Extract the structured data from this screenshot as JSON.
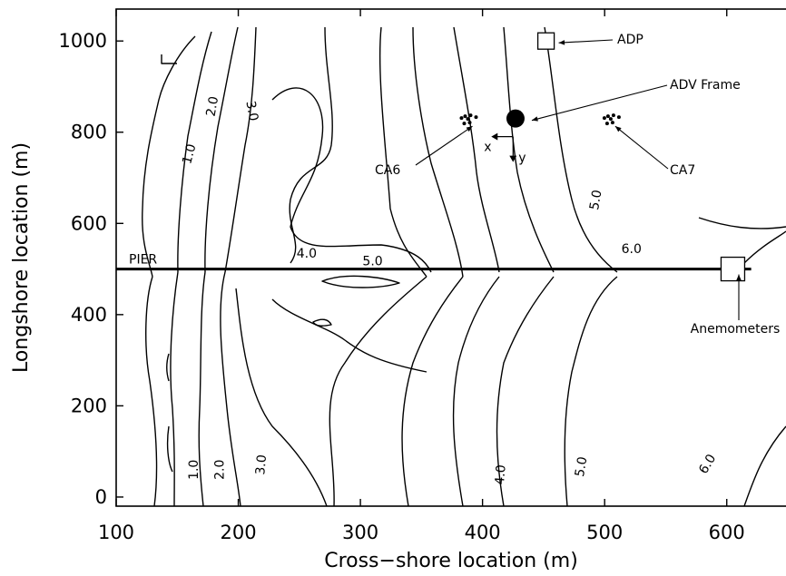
{
  "chart_data": {
    "type": "contour",
    "xlabel": "Cross−shore location (m)",
    "ylabel": "Longshore location (m)",
    "xlim": [
      100,
      650
    ],
    "ylim": [
      -20,
      1070
    ],
    "x_ticks": [
      "100",
      "200",
      "300",
      "400",
      "500",
      "600"
    ],
    "y_ticks": [
      "0",
      "200",
      "400",
      "600",
      "800",
      "1000"
    ],
    "contour_levels": [
      "1.0",
      "2.0",
      "3.0",
      "4.0",
      "5.0",
      "6.0"
    ],
    "contour_labels": [
      {
        "text": "1.0",
        "x": 163,
        "y": 750,
        "angle": -75
      },
      {
        "text": "2.0",
        "x": 182,
        "y": 855,
        "angle": -80
      },
      {
        "text": "3.0",
        "x": 208,
        "y": 845,
        "angle": 80
      },
      {
        "text": "4.0",
        "x": 256,
        "y": 525,
        "angle": 0
      },
      {
        "text": "5.0",
        "x": 310,
        "y": 508,
        "angle": 0
      },
      {
        "text": "5.0",
        "x": 496,
        "y": 650,
        "angle": -80
      },
      {
        "text": "6.0",
        "x": 522,
        "y": 535,
        "angle": 0
      },
      {
        "text": "1.0",
        "x": 167,
        "y": 60,
        "angle": -90
      },
      {
        "text": "2.0",
        "x": 188,
        "y": 60,
        "angle": -90
      },
      {
        "text": "3.0",
        "x": 222,
        "y": 70,
        "angle": -85
      },
      {
        "text": "4.0",
        "x": 418,
        "y": 48,
        "angle": -85
      },
      {
        "text": "5.0",
        "x": 484,
        "y": 65,
        "angle": -80
      },
      {
        "text": "6.0",
        "x": 587,
        "y": 68,
        "angle": -60
      }
    ],
    "pier": {
      "label": "PIER",
      "y": 500,
      "x_start": 100,
      "x_end": 620
    },
    "instruments": [
      {
        "name": "ADP",
        "x": 452,
        "y": 1000,
        "marker": "open-square",
        "label": "ADP"
      },
      {
        "name": "ADV Frame",
        "x": 427,
        "y": 830,
        "marker": "filled-circle",
        "label": "ADV Frame"
      },
      {
        "name": "CA6",
        "x": 388,
        "y": 825,
        "marker": "dots",
        "label": "CA6"
      },
      {
        "name": "CA7",
        "x": 505,
        "y": 825,
        "marker": "dots",
        "label": "CA7"
      },
      {
        "name": "Anemometers",
        "x": 605,
        "y": 500,
        "marker": "open-square",
        "label": "Anemometers"
      }
    ],
    "axis_glyphs": {
      "x_label": "x",
      "y_label": "y"
    }
  }
}
